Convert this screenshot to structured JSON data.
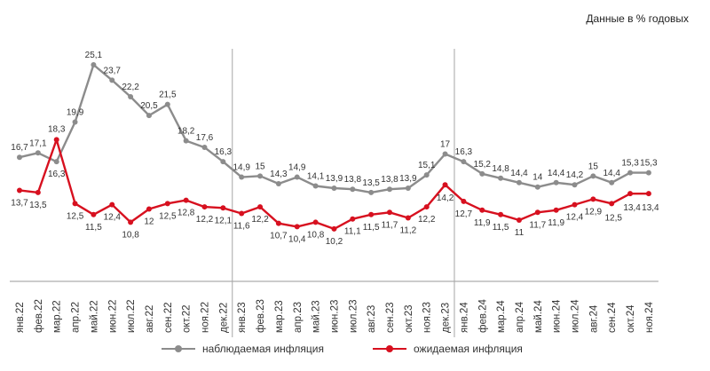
{
  "units_note": "Данные в % годовых",
  "chart_data": {
    "type": "line",
    "categories": [
      "янв.22",
      "фев.22",
      "мар.22",
      "апр.22",
      "май.22",
      "июн.22",
      "июл.22",
      "авг.22",
      "сен.22",
      "окт.22",
      "ноя.22",
      "дек.22",
      "янв.23",
      "фев.23",
      "мар.23",
      "апр.23",
      "май.23",
      "июн.23",
      "июл.23",
      "авг.23",
      "сен.23",
      "окт.23",
      "ноя.23",
      "дек.23",
      "янв.24",
      "фев.24",
      "мар.24",
      "апр.24",
      "май.24",
      "июн.24",
      "июл.24",
      "авг.24",
      "сен.24",
      "окт.24",
      "ноя.24"
    ],
    "series": [
      {
        "name": "наблюдаемая инфляция",
        "color": "#8c8c8c",
        "values": [
          16.7,
          17.1,
          16.3,
          19.9,
          25.1,
          23.7,
          22.2,
          20.5,
          21.5,
          18.2,
          17.6,
          16.3,
          14.9,
          15.0,
          14.3,
          14.9,
          14.1,
          13.9,
          13.8,
          13.5,
          13.8,
          13.9,
          15.1,
          17.0,
          16.3,
          15.2,
          14.8,
          14.4,
          14.0,
          14.4,
          14.2,
          15.0,
          14.4,
          15.3,
          15.3
        ]
      },
      {
        "name": "ожидаемая инфляция",
        "color": "#d7101f",
        "values": [
          13.7,
          13.5,
          18.3,
          12.5,
          11.5,
          12.4,
          10.8,
          12.0,
          12.5,
          12.8,
          12.2,
          12.1,
          11.6,
          12.2,
          10.7,
          10.4,
          10.8,
          10.2,
          11.1,
          11.5,
          11.7,
          11.2,
          12.2,
          14.2,
          12.7,
          11.9,
          11.5,
          11.0,
          11.7,
          11.9,
          12.4,
          12.9,
          12.5,
          13.4,
          13.4
        ]
      }
    ],
    "ylim": [
      6,
      28
    ],
    "grid": false,
    "year_separators_after": [
      "дек.22",
      "дек.23"
    ],
    "legend_position": "bottom"
  }
}
